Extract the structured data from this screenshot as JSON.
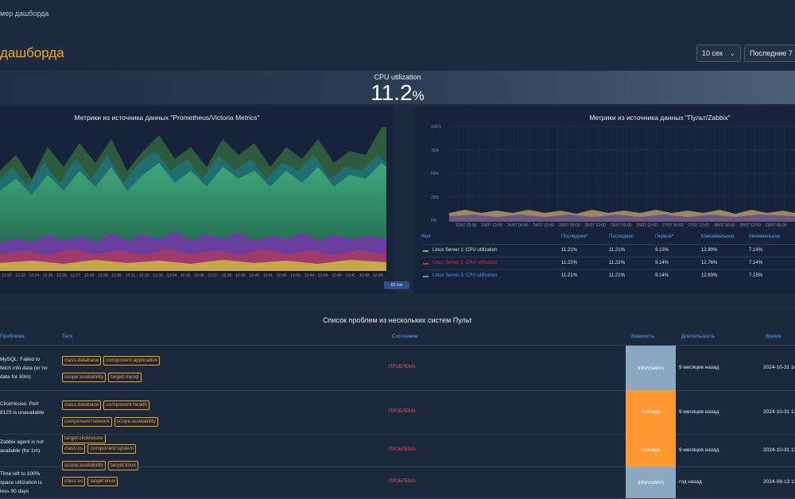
{
  "breadcrumb": "мер дашборда",
  "page_title": "дашборда",
  "controls": {
    "refresh": "10 сек",
    "range": "Последние 7"
  },
  "stat": {
    "label": "CPU utilization",
    "value": "11.2",
    "unit": "%"
  },
  "left_panel": {
    "title": "Метрики из источника данных \"Prometheus/Victoria Metrics\"",
    "x_ticks": [
      "12:22",
      "12:23",
      "12:24",
      "12:25",
      "12:26",
      "12:27",
      "12:28",
      "12:29",
      "12:30",
      "12:31",
      "12:32",
      "12:33",
      "12:34",
      "12:35",
      "12:36",
      "12:37",
      "12:38",
      "12:39",
      "12:40",
      "12:41",
      "12:42",
      "12:43",
      "12:44",
      "12:45",
      "12:46",
      "12:47",
      "12:48",
      "12:49"
    ],
    "badge": "60 сек"
  },
  "right_panel": {
    "title": "Метрики из источника данных \"Пульт/Zabbix\"",
    "y_ticks": [
      "100%",
      "75%",
      "50%",
      "25%",
      "0%"
    ],
    "x_ticks": [
      "22/07 20:00",
      "23/07 12:00",
      "24/07 00:00",
      "24/07 12:00",
      "25/07 00:00",
      "25/07 12:00",
      "26/07 00:00",
      "26/07 12:00",
      "27/07 00:00",
      "27/07 12:00",
      "28/07 00:00",
      "28/07 12:00",
      "29/07 00:00"
    ],
    "legend_headers": [
      "Имя",
      "Последнее*",
      "Последнее",
      "Первое*",
      "Максимальное",
      "Минимальное"
    ],
    "legend_rows": [
      {
        "name": "Linux Server 1: CPU utilization",
        "color": "#73bf69",
        "values": [
          "11.21%",
          "11.21%",
          "9.13%",
          "12.80%",
          "7.14%"
        ]
      },
      {
        "name": "Linux Server 2: CPU utilization",
        "color": "#e02f44",
        "values": [
          "11.22%",
          "11.22%",
          "9.14%",
          "12.76%",
          "7.14%"
        ]
      },
      {
        "name": "Linux Server 3: CPU utilization",
        "color": "#5794f2",
        "values": [
          "11.21%",
          "11.21%",
          "9.14%",
          "12.63%",
          "7.15%"
        ]
      }
    ]
  },
  "problems": {
    "title": "Список проблем из нескольких систем Пульт",
    "headers": {
      "problem": "Проблема",
      "tags": "Теги",
      "state": "Состояние",
      "severity": "Важность",
      "duration": "Длительность",
      "time": "Время"
    },
    "rows": [
      {
        "problem": "MySQL: Failed to fetch info data (or no data for 30m)",
        "tags": [
          "class:database",
          "component:application",
          "scope:availability",
          "target:mysql"
        ],
        "state": "ПРОБЛЕМА",
        "severity": "Information",
        "severity_color": "#8aa8c0",
        "duration": "9 месяцев назад",
        "time": "2024-10-31 14"
      },
      {
        "problem": "ClickHouse: Port 8123 is unavailable",
        "tags": [
          "class:database",
          "component:health",
          "component:network",
          "scope:availability",
          "target:clickhouse"
        ],
        "state": "ПРОБЛЕМА",
        "severity": "Average",
        "severity_color": "#ff9830",
        "duration": "9 месяцев назад",
        "time": "2024-10-31 13"
      },
      {
        "problem": "Zabbix agent is not available (for 1m)",
        "tags": [
          "class:os",
          "component:system",
          "scope:availability",
          "target:linux"
        ],
        "state": "ПРОБЛЕМА",
        "severity": "Average",
        "severity_color": "#ff9830",
        "duration": "9 месяцев назад",
        "time": "2024-10-31 13"
      },
      {
        "problem": "Time left to 100% space utilization is less 90 days",
        "tags": [
          "class:os",
          "target:linux"
        ],
        "state": "ПРОБЛЕМА",
        "severity": "Information",
        "severity_color": "#8aa8c0",
        "duration": "год назад",
        "time": "2024-08-13 13"
      }
    ]
  }
}
